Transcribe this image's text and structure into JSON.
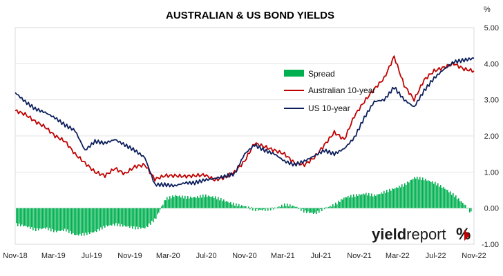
{
  "chart_data": {
    "type": "line",
    "title": "AUSTRALIAN & US BOND YIELDS",
    "ylabel": "%",
    "ylim": [
      -1.0,
      5.0
    ],
    "y_ticks": [
      "5.00",
      "4.00",
      "3.00",
      "2.00",
      "1.00",
      "0.00",
      "-1.00"
    ],
    "y_axis_side": "right",
    "x_ticks": [
      "Nov-18",
      "Mar-19",
      "Jul-19",
      "Nov-19",
      "Mar-20",
      "Jul-20",
      "Nov-20",
      "Mar-21",
      "Jul-21",
      "Nov-21",
      "Mar-22",
      "Jul-22",
      "Nov-22"
    ],
    "grid": "horizontal",
    "legend_position": "upper-middle",
    "series": [
      {
        "name": "Spread",
        "kind": "bar",
        "color": "#00b050",
        "values": [
          -0.45,
          -0.5,
          -0.6,
          -0.55,
          -0.65,
          -0.6,
          -0.75,
          -0.72,
          -0.65,
          -0.5,
          -0.45,
          -0.5,
          -0.55,
          -0.55,
          -0.3,
          0.25,
          0.35,
          0.3,
          0.3,
          0.35,
          0.3,
          0.2,
          0.1,
          0.05,
          -0.05,
          -0.05,
          0.0,
          0.1,
          0.05,
          -0.1,
          -0.15,
          0.0,
          0.1,
          0.3,
          0.35,
          0.4,
          0.35,
          0.45,
          0.55,
          0.65,
          0.85,
          0.8,
          0.7,
          0.55,
          0.35,
          0.1,
          -0.25
        ]
      },
      {
        "name": "Australian 10-year",
        "kind": "line",
        "color": "#c00000",
        "values": [
          2.7,
          2.6,
          2.4,
          2.25,
          2.0,
          1.85,
          1.5,
          1.25,
          1.0,
          0.9,
          1.1,
          0.95,
          1.15,
          1.2,
          0.8,
          0.9,
          0.9,
          0.88,
          0.9,
          0.92,
          0.78,
          0.85,
          1.0,
          1.3,
          1.8,
          1.7,
          1.6,
          1.5,
          1.25,
          1.2,
          1.4,
          1.75,
          2.1,
          1.9,
          2.55,
          2.95,
          3.3,
          3.6,
          4.2,
          3.4,
          3.0,
          3.55,
          3.8,
          3.9,
          4.0,
          3.85,
          3.8
        ]
      },
      {
        "name": "US 10-year",
        "kind": "line",
        "color": "#0d1f5c",
        "values": [
          3.2,
          2.95,
          2.75,
          2.65,
          2.5,
          2.3,
          2.15,
          1.6,
          1.85,
          1.8,
          1.9,
          1.75,
          1.6,
          1.4,
          0.65,
          0.65,
          0.62,
          0.7,
          0.7,
          0.78,
          0.82,
          0.88,
          0.95,
          1.5,
          1.75,
          1.6,
          1.5,
          1.3,
          1.2,
          1.3,
          1.45,
          1.6,
          1.5,
          1.65,
          1.95,
          2.5,
          2.95,
          3.0,
          3.35,
          3.0,
          2.8,
          3.25,
          3.6,
          3.85,
          4.05,
          4.1,
          4.15
        ]
      }
    ]
  },
  "legend": {
    "spread": "Spread",
    "australian": "Australian 10-year",
    "us": "US 10-year"
  },
  "logo": {
    "part1": "yield",
    "part2": "report",
    "part3": "%"
  }
}
